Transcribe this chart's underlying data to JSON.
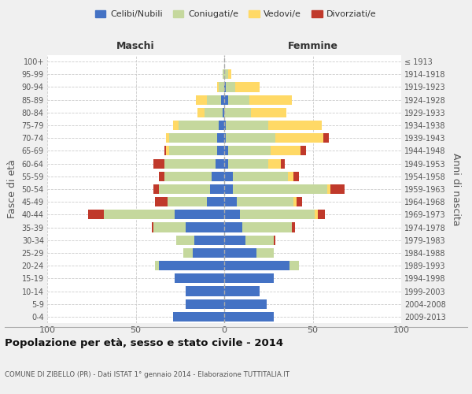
{
  "age_groups": [
    "0-4",
    "5-9",
    "10-14",
    "15-19",
    "20-24",
    "25-29",
    "30-34",
    "35-39",
    "40-44",
    "45-49",
    "50-54",
    "55-59",
    "60-64",
    "65-69",
    "70-74",
    "75-79",
    "80-84",
    "85-89",
    "90-94",
    "95-99",
    "100+"
  ],
  "birth_years": [
    "2009-2013",
    "2004-2008",
    "1999-2003",
    "1994-1998",
    "1989-1993",
    "1984-1988",
    "1979-1983",
    "1974-1978",
    "1969-1973",
    "1964-1968",
    "1959-1963",
    "1954-1958",
    "1949-1953",
    "1944-1948",
    "1939-1943",
    "1934-1938",
    "1929-1933",
    "1924-1928",
    "1919-1923",
    "1914-1918",
    "≤ 1913"
  ],
  "maschi": {
    "celibi": [
      29,
      22,
      22,
      28,
      37,
      18,
      17,
      22,
      28,
      10,
      8,
      7,
      5,
      4,
      4,
      3,
      1,
      2,
      0,
      0,
      0
    ],
    "coniugati": [
      0,
      0,
      0,
      0,
      2,
      5,
      10,
      18,
      40,
      22,
      29,
      27,
      29,
      27,
      27,
      23,
      10,
      8,
      3,
      1,
      0
    ],
    "vedovi": [
      0,
      0,
      0,
      0,
      0,
      0,
      0,
      0,
      0,
      0,
      0,
      0,
      0,
      2,
      2,
      3,
      4,
      6,
      1,
      0,
      0
    ],
    "divorziati": [
      0,
      0,
      0,
      0,
      0,
      0,
      0,
      1,
      9,
      7,
      3,
      3,
      6,
      1,
      0,
      0,
      0,
      0,
      0,
      0,
      0
    ]
  },
  "femmine": {
    "nubili": [
      28,
      24,
      20,
      28,
      37,
      18,
      12,
      10,
      9,
      7,
      5,
      5,
      2,
      2,
      1,
      1,
      0,
      2,
      1,
      0,
      0
    ],
    "coniugate": [
      0,
      0,
      0,
      0,
      5,
      10,
      16,
      28,
      42,
      32,
      53,
      31,
      23,
      24,
      28,
      24,
      15,
      12,
      5,
      2,
      0
    ],
    "vedove": [
      0,
      0,
      0,
      0,
      0,
      0,
      0,
      0,
      2,
      2,
      2,
      3,
      7,
      17,
      27,
      30,
      20,
      24,
      14,
      2,
      0
    ],
    "divorziate": [
      0,
      0,
      0,
      0,
      0,
      0,
      1,
      2,
      4,
      3,
      8,
      3,
      2,
      3,
      3,
      0,
      0,
      0,
      0,
      0,
      0
    ]
  },
  "colors": {
    "celibi": "#4472c4",
    "coniugati": "#c5d89d",
    "vedovi": "#ffd966",
    "divorziati": "#c0392b"
  },
  "xlim": 100,
  "title": "Popolazione per età, sesso e stato civile - 2014",
  "subtitle": "COMUNE DI ZIBELLO (PR) - Dati ISTAT 1° gennaio 2014 - Elaborazione TUTTITALIA.IT",
  "ylabel_left": "Fasce di età",
  "ylabel_right": "Anni di nascita",
  "xlabel_maschi": "Maschi",
  "xlabel_femmine": "Femmine",
  "legend_labels": [
    "Celibi/Nubili",
    "Coniugati/e",
    "Vedovi/e",
    "Divorziati/e"
  ],
  "bg_color": "#f0f0f0",
  "plot_bg": "#ffffff"
}
